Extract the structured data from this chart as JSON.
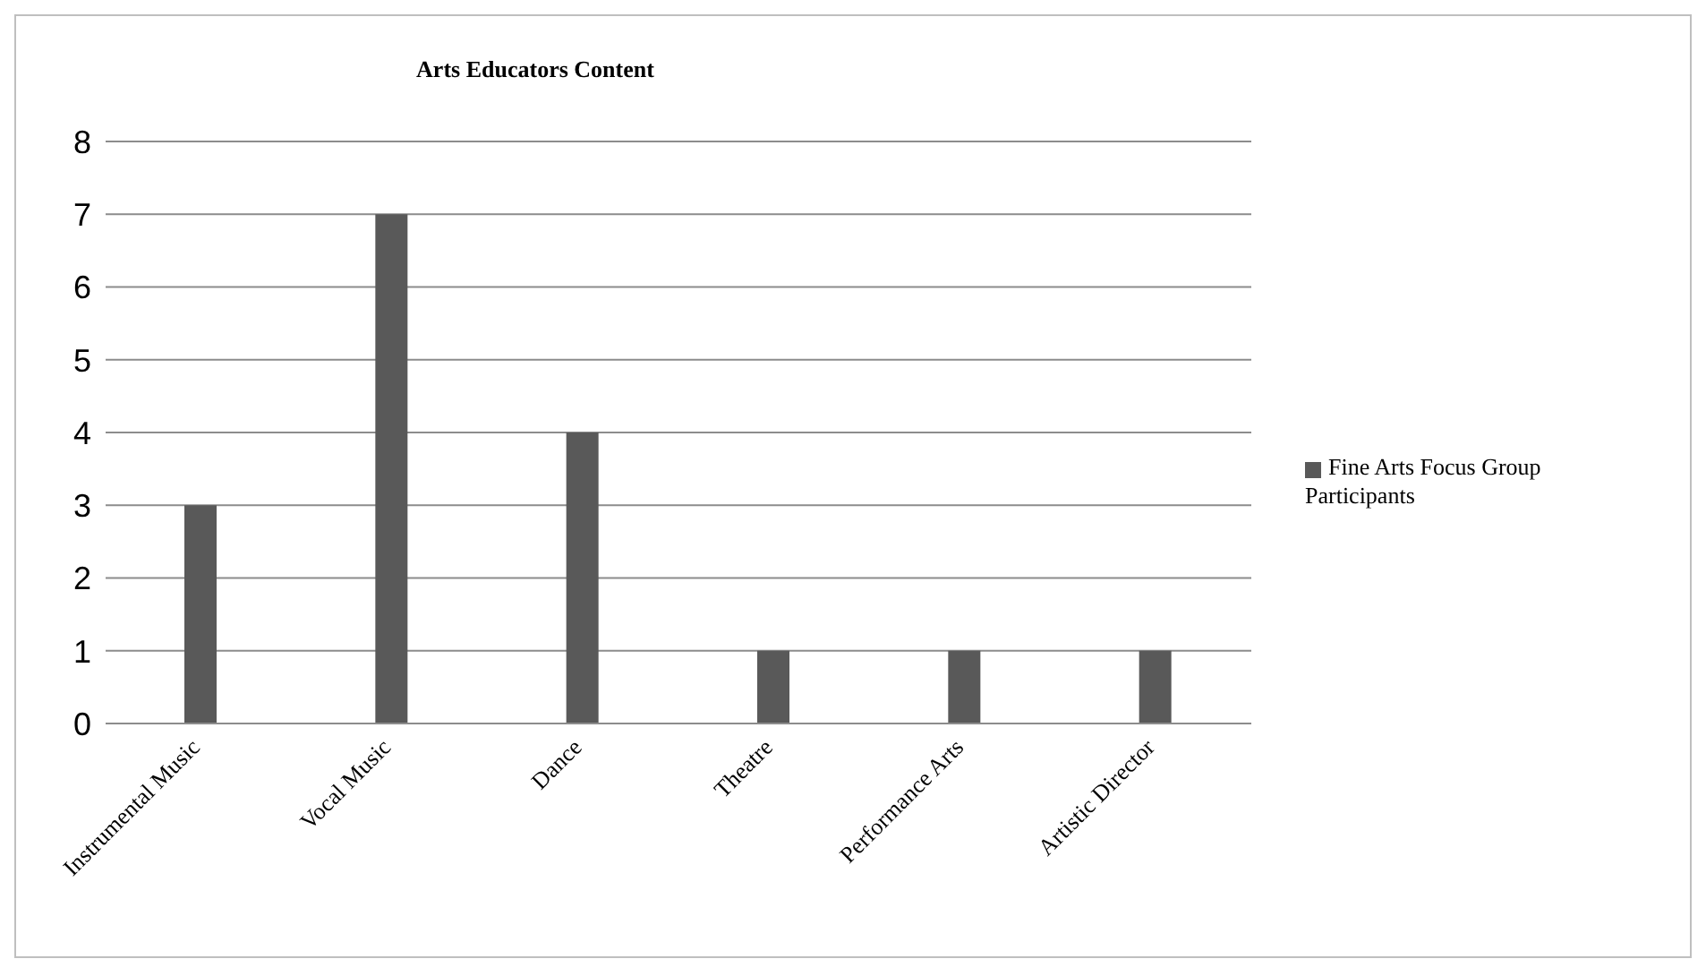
{
  "chart_data": {
    "type": "bar",
    "title": "Arts Educators Content",
    "categories": [
      "Instrumental Music",
      "Vocal Music",
      "Dance",
      "Theatre",
      "Performance Arts",
      "Artistic Director"
    ],
    "series": [
      {
        "name": "Fine Arts Focus Group Participants",
        "color": "#595959",
        "values": [
          3,
          7,
          4,
          1,
          1,
          1
        ]
      }
    ],
    "ylim": [
      0,
      8
    ],
    "yticks": [
      0,
      1,
      2,
      3,
      4,
      5,
      6,
      7,
      8
    ],
    "grid": "y",
    "legend": "right"
  }
}
